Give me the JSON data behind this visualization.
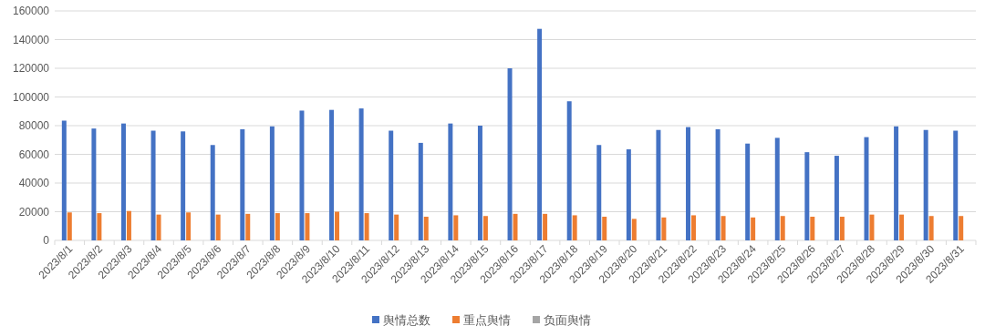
{
  "chart_data": {
    "type": "bar",
    "categories": [
      "2023/8/1",
      "2023/8/2",
      "2023/8/3",
      "2023/8/4",
      "2023/8/5",
      "2023/8/6",
      "2023/8/7",
      "2023/8/8",
      "2023/8/9",
      "2023/8/10",
      "2023/8/11",
      "2023/8/12",
      "2023/8/13",
      "2023/8/14",
      "2023/8/15",
      "2023/8/16",
      "2023/8/17",
      "2023/8/18",
      "2023/8/19",
      "2023/8/20",
      "2023/8/21",
      "2023/8/22",
      "2023/8/23",
      "2023/8/24",
      "2023/8/25",
      "2023/8/26",
      "2023/8/27",
      "2023/8/28",
      "2023/8/29",
      "2023/8/30",
      "2023/8/31"
    ],
    "series": [
      {
        "name": "舆情总数",
        "color": "#4472c4",
        "values": [
          83500,
          78000,
          81500,
          76500,
          76000,
          66500,
          77500,
          79500,
          90500,
          91000,
          92000,
          76500,
          68000,
          81500,
          80000,
          120000,
          147500,
          97000,
          66500,
          63500,
          77000,
          79000,
          77500,
          67500,
          71500,
          61500,
          59000,
          72000,
          79500,
          77000,
          76500
        ]
      },
      {
        "name": "重点舆情",
        "color": "#ed7d31",
        "values": [
          19500,
          19000,
          20500,
          18000,
          19500,
          18000,
          18500,
          19000,
          19000,
          20000,
          19000,
          18000,
          16500,
          17500,
          17000,
          18500,
          18500,
          17500,
          16500,
          15000,
          16000,
          17500,
          17000,
          16000,
          17000,
          16500,
          16500,
          18000,
          18000,
          17000,
          17000
        ]
      },
      {
        "name": "负面舆情",
        "color": "#a5a5a5",
        "values": [
          0,
          0,
          0,
          0,
          0,
          0,
          0,
          0,
          0,
          0,
          0,
          0,
          0,
          0,
          0,
          0,
          0,
          0,
          0,
          0,
          0,
          0,
          0,
          0,
          0,
          0,
          0,
          0,
          0,
          0,
          0
        ]
      }
    ],
    "ylim": [
      0,
      160000
    ],
    "yticks": [
      0,
      20000,
      40000,
      60000,
      80000,
      100000,
      120000,
      140000,
      160000
    ],
    "grid": "y",
    "legend": "bottom"
  }
}
